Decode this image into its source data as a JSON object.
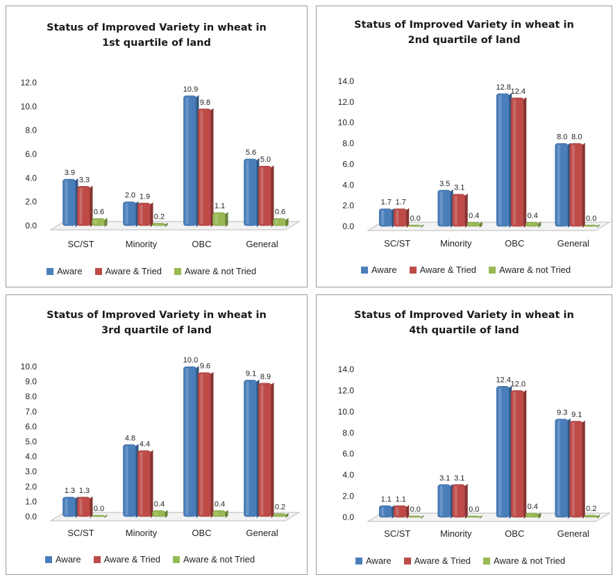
{
  "colors": {
    "aware": "#4a7ebb",
    "aware_tried": "#be4b48",
    "aware_not_tried": "#98b954"
  },
  "chart_data": [
    {
      "type": "bar",
      "title_line1": "Status of Improved Variety in wheat in",
      "title_line2": "1st quartile of land",
      "categories": [
        "SC/ST",
        "Minority",
        "OBC",
        "General"
      ],
      "series": [
        {
          "name": "Aware",
          "values": [
            3.9,
            2.0,
            10.9,
            5.6
          ],
          "labels": [
            "3.9",
            "2.0",
            "10.9",
            "5.6"
          ]
        },
        {
          "name": "Aware & Tried",
          "values": [
            3.3,
            1.9,
            9.8,
            5.0
          ],
          "labels": [
            "3.3",
            "1.9",
            "9.8",
            "5.0"
          ]
        },
        {
          "name": "Aware & not Tried",
          "values": [
            0.6,
            0.2,
            1.1,
            0.6
          ],
          "labels": [
            "0.6",
            "0.2",
            "1.1",
            "0.6"
          ]
        }
      ],
      "ylim": [
        0,
        12
      ],
      "yticks": [
        "0.0",
        "2.0",
        "4.0",
        "6.0",
        "8.0",
        "10.0",
        "12.0"
      ],
      "legend": "bottom"
    },
    {
      "type": "bar",
      "title_line1": "Status of Improved Variety in wheat in",
      "title_line2": "2nd quartile of land",
      "categories": [
        "SC/ST",
        "Minority",
        "OBC",
        "General"
      ],
      "series": [
        {
          "name": "Aware",
          "values": [
            1.7,
            3.5,
            12.8,
            8.0
          ],
          "labels": [
            "1.7",
            "3.5",
            "12.8",
            "8.0"
          ]
        },
        {
          "name": "Aware & Tried",
          "values": [
            1.7,
            3.1,
            12.4,
            8.0
          ],
          "labels": [
            "1.7",
            "3.1",
            "12.4",
            "8.0"
          ]
        },
        {
          "name": "Aware & not Tried",
          "values": [
            0.0,
            0.4,
            0.4,
            0.0
          ],
          "labels": [
            "0.0",
            "0.4",
            "0.4",
            "0.0"
          ]
        }
      ],
      "ylim": [
        0,
        14
      ],
      "yticks": [
        "0.0",
        "2.0",
        "4.0",
        "6.0",
        "8.0",
        "10.0",
        "12.0",
        "14.0"
      ],
      "legend": "bottom"
    },
    {
      "type": "bar",
      "title_line1": "Status of Improved Variety in wheat in",
      "title_line2": "3rd quartile of land",
      "categories": [
        "SC/ST",
        "Minority",
        "OBC",
        "General"
      ],
      "series": [
        {
          "name": "Aware",
          "values": [
            1.3,
            4.8,
            10.0,
            9.1
          ],
          "labels": [
            "1.3",
            "4.8",
            "10.0",
            "9.1"
          ]
        },
        {
          "name": "Aware & Tried",
          "values": [
            1.3,
            4.4,
            9.6,
            8.9
          ],
          "labels": [
            "1.3",
            "4.4",
            "9.6",
            "8.9"
          ]
        },
        {
          "name": "Aware & not Tried",
          "values": [
            0.0,
            0.4,
            0.4,
            0.2
          ],
          "labels": [
            "0.0",
            "0.4",
            "0.4",
            "0.2"
          ]
        }
      ],
      "ylim": [
        0,
        10
      ],
      "yticks": [
        "0.0",
        "1.0",
        "2.0",
        "3.0",
        "4.0",
        "5.0",
        "6.0",
        "7.0",
        "8.0",
        "9.0",
        "10.0"
      ],
      "legend": "bottom"
    },
    {
      "type": "bar",
      "title_line1": "Status of Improved Variety in wheat in",
      "title_line2": "4th quartile of land",
      "categories": [
        "SC/ST",
        "Minority",
        "OBC",
        "General"
      ],
      "series": [
        {
          "name": "Aware",
          "values": [
            1.1,
            3.1,
            12.4,
            9.3
          ],
          "labels": [
            "1.1",
            "3.1",
            "12.4",
            "9.3"
          ]
        },
        {
          "name": "Aware & Tried",
          "values": [
            1.1,
            3.1,
            12.0,
            9.1
          ],
          "labels": [
            "1.1",
            "3.1",
            "12.0",
            "9.1"
          ]
        },
        {
          "name": "Aware & not Tried",
          "values": [
            0.0,
            0.0,
            0.4,
            0.2
          ],
          "labels": [
            "0.0",
            "0.0",
            "0.4",
            "0.2"
          ]
        }
      ],
      "ylim": [
        0,
        14
      ],
      "yticks": [
        "0.0",
        "2.0",
        "4.0",
        "6.0",
        "8.0",
        "10.0",
        "12.0",
        "14.0"
      ],
      "legend": "bottom"
    }
  ]
}
